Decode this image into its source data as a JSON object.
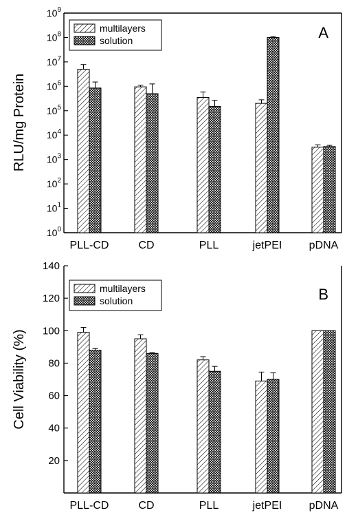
{
  "chart_data": [
    {
      "panel": "A",
      "type": "bar",
      "yscale": "log",
      "ylabel": "RLU/mg Protein",
      "ylim": [
        1,
        1000000000
      ],
      "y_tick_values": [
        1,
        10,
        100,
        1000,
        10000,
        100000,
        1000000,
        10000000,
        100000000,
        1000000000
      ],
      "y_tick_exponents": [
        "0",
        "1",
        "2",
        "3",
        "4",
        "5",
        "6",
        "7",
        "8",
        "9"
      ],
      "y_tick_base": "10",
      "categories": [
        "PLL-CD",
        "CD",
        "PLL",
        "jetPEI",
        "pDNA"
      ],
      "legend_position": "top-left",
      "series": [
        {
          "name": "multilayers",
          "pattern": "diagonal-hatch",
          "values": [
            5000000,
            950000,
            350000,
            200000,
            3200
          ],
          "errors_up": [
            7800000,
            1100000,
            580000,
            280000,
            4000
          ]
        },
        {
          "name": "solution",
          "pattern": "crosshatch",
          "values": [
            850000,
            500000,
            150000,
            100000000,
            3400
          ],
          "errors_up": [
            1500000,
            1250000,
            270000,
            110000000,
            3800
          ]
        }
      ]
    },
    {
      "panel": "B",
      "type": "bar",
      "ylabel": "Cell Viability (%)",
      "ylim": [
        0,
        140
      ],
      "y_ticks": [
        "20",
        "40",
        "60",
        "80",
        "100",
        "120",
        "140"
      ],
      "categories": [
        "PLL-CD",
        "CD",
        "PLL",
        "jetPEI",
        "pDNA"
      ],
      "legend_position": "top-left",
      "series": [
        {
          "name": "multilayers",
          "pattern": "diagonal-hatch",
          "values": [
            99,
            95,
            82,
            69,
            100
          ],
          "errors_up": [
            102,
            97.5,
            84,
            74.5,
            100
          ]
        },
        {
          "name": "solution",
          "pattern": "crosshatch",
          "values": [
            88,
            86,
            75,
            70,
            100
          ],
          "errors_up": [
            89,
            86.5,
            78,
            74,
            100
          ]
        }
      ]
    }
  ]
}
